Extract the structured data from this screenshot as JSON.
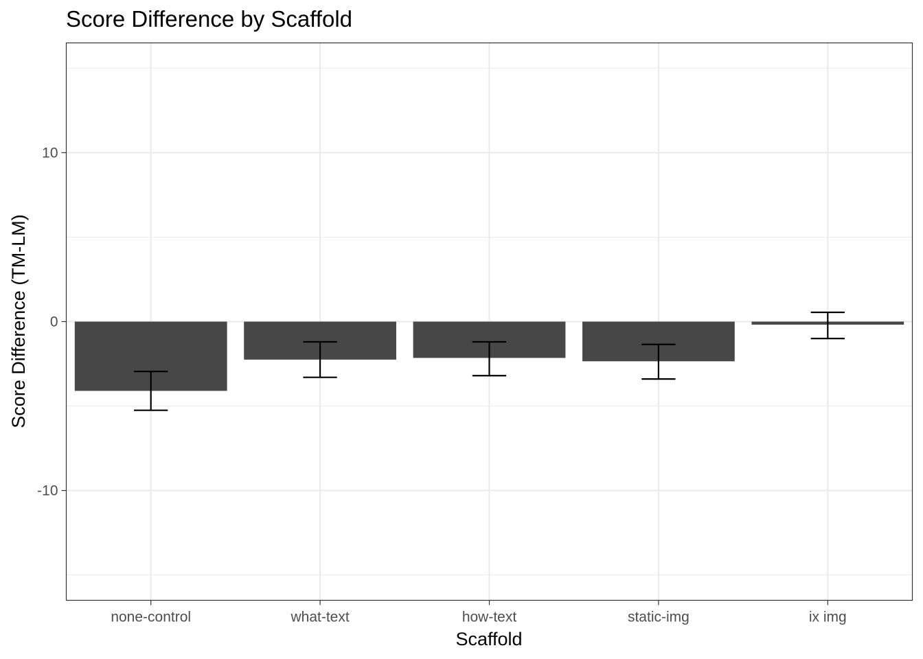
{
  "chart_data": {
    "type": "bar",
    "title": "Score Difference by Scaffold",
    "xlabel": "Scaffold",
    "ylabel": "Score Difference (TM-LM)",
    "categories": [
      "none-control",
      "what-text",
      "how-text",
      "static-img",
      "ix img"
    ],
    "values": [
      -4.1,
      -2.25,
      -2.15,
      -2.35,
      -0.18
    ],
    "error_bars": [
      {
        "low": -5.25,
        "high": -2.95
      },
      {
        "low": -3.3,
        "high": -1.2
      },
      {
        "low": -3.2,
        "high": -1.2
      },
      {
        "low": -3.4,
        "high": -1.35
      },
      {
        "low": -1.0,
        "high": 0.55
      }
    ],
    "ylim": [
      -16.5,
      16.5
    ],
    "y_ticks": [
      -10,
      0,
      10
    ],
    "y_tick_labels": [
      "-10",
      "0",
      "10"
    ],
    "grid": true,
    "bar_color": "#474747",
    "grid_color": "#ebebeb",
    "panel_border_color": "#333333",
    "errorbar_color": "#000000",
    "tick_label_color": "#4d4d4d"
  }
}
